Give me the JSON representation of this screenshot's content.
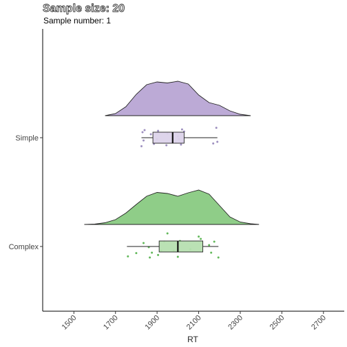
{
  "chart_data": {
    "type": "raincloud",
    "title": "Sample size: 20",
    "subtitle": "Sample number: 1",
    "xlabel": "RT",
    "ylabel": "",
    "xlim": [
      1350,
      2800
    ],
    "xticks": [
      1500,
      1700,
      1900,
      2100,
      2300,
      2500,
      2700
    ],
    "grid": false,
    "legend": "none",
    "categories": [
      "Simple",
      "Complex"
    ],
    "series": [
      {
        "name": "Simple",
        "color": "#bcaad6",
        "box_color": "#dcd3ea",
        "point_color": "#9d8fbf",
        "density_range": [
          1650,
          2350
        ],
        "density": [
          [
            1650,
            0.0
          ],
          [
            1700,
            0.06
          ],
          [
            1750,
            0.26
          ],
          [
            1800,
            0.62
          ],
          [
            1850,
            0.9
          ],
          [
            1900,
            0.98
          ],
          [
            1950,
            0.95
          ],
          [
            2000,
            1.0
          ],
          [
            2050,
            0.92
          ],
          [
            2100,
            0.6
          ],
          [
            2150,
            0.38
          ],
          [
            2200,
            0.3
          ],
          [
            2250,
            0.14
          ],
          [
            2300,
            0.04
          ],
          [
            2350,
            0.0
          ]
        ],
        "box": {
          "whisker_low": 1825,
          "q1": 1880,
          "median": 1975,
          "q3": 2030,
          "whisker_high": 2190
        },
        "points": [
          [
            1825,
            0.62
          ],
          [
            1830,
            -0.4
          ],
          [
            1835,
            0.2
          ],
          [
            1840,
            -0.55
          ],
          [
            1870,
            -0.25
          ],
          [
            1885,
            0.45
          ],
          [
            1900,
            0.1
          ],
          [
            1905,
            -0.5
          ],
          [
            1945,
            0.55
          ],
          [
            1950,
            -0.3
          ],
          [
            1990,
            0.35
          ],
          [
            2000,
            -0.1
          ],
          [
            2005,
            0.1
          ],
          [
            2015,
            0.5
          ],
          [
            2020,
            -0.6
          ],
          [
            2025,
            0.3
          ],
          [
            2030,
            -0.45
          ],
          [
            2170,
            0.42
          ],
          [
            2185,
            -0.72
          ],
          [
            2190,
            0.3
          ]
        ]
      },
      {
        "name": "Complex",
        "color": "#8fcd88",
        "box_color": "#b6dfb0",
        "point_color": "#62b85a",
        "density_range": [
          1550,
          2390
        ],
        "density": [
          [
            1550,
            0.0
          ],
          [
            1600,
            0.01
          ],
          [
            1650,
            0.05
          ],
          [
            1700,
            0.14
          ],
          [
            1750,
            0.33
          ],
          [
            1800,
            0.58
          ],
          [
            1850,
            0.82
          ],
          [
            1900,
            0.93
          ],
          [
            1950,
            0.9
          ],
          [
            2000,
            0.82
          ],
          [
            2050,
            0.92
          ],
          [
            2100,
            1.0
          ],
          [
            2150,
            0.88
          ],
          [
            2200,
            0.55
          ],
          [
            2250,
            0.22
          ],
          [
            2300,
            0.07
          ],
          [
            2350,
            0.02
          ],
          [
            2390,
            0.0
          ]
        ],
        "box": {
          "whisker_low": 1755,
          "q1": 1910,
          "median": 2000,
          "q3": 2120,
          "whisker_high": 2195
        },
        "points": [
          [
            1760,
            0.72
          ],
          [
            1800,
            0.48
          ],
          [
            1835,
            -0.25
          ],
          [
            1860,
            0.05
          ],
          [
            1865,
            0.8
          ],
          [
            1875,
            0.45
          ],
          [
            1905,
            0.62
          ],
          [
            1920,
            0.3
          ],
          [
            1935,
            -0.35
          ],
          [
            1950,
            -0.95
          ],
          [
            1980,
            0.3
          ],
          [
            2000,
            0.75
          ],
          [
            2010,
            -0.4
          ],
          [
            2060,
            0.2
          ],
          [
            2100,
            -0.72
          ],
          [
            2110,
            -0.55
          ],
          [
            2150,
            -0.1
          ],
          [
            2160,
            0.45
          ],
          [
            2175,
            -0.35
          ],
          [
            2195,
            0.8
          ]
        ]
      }
    ]
  }
}
